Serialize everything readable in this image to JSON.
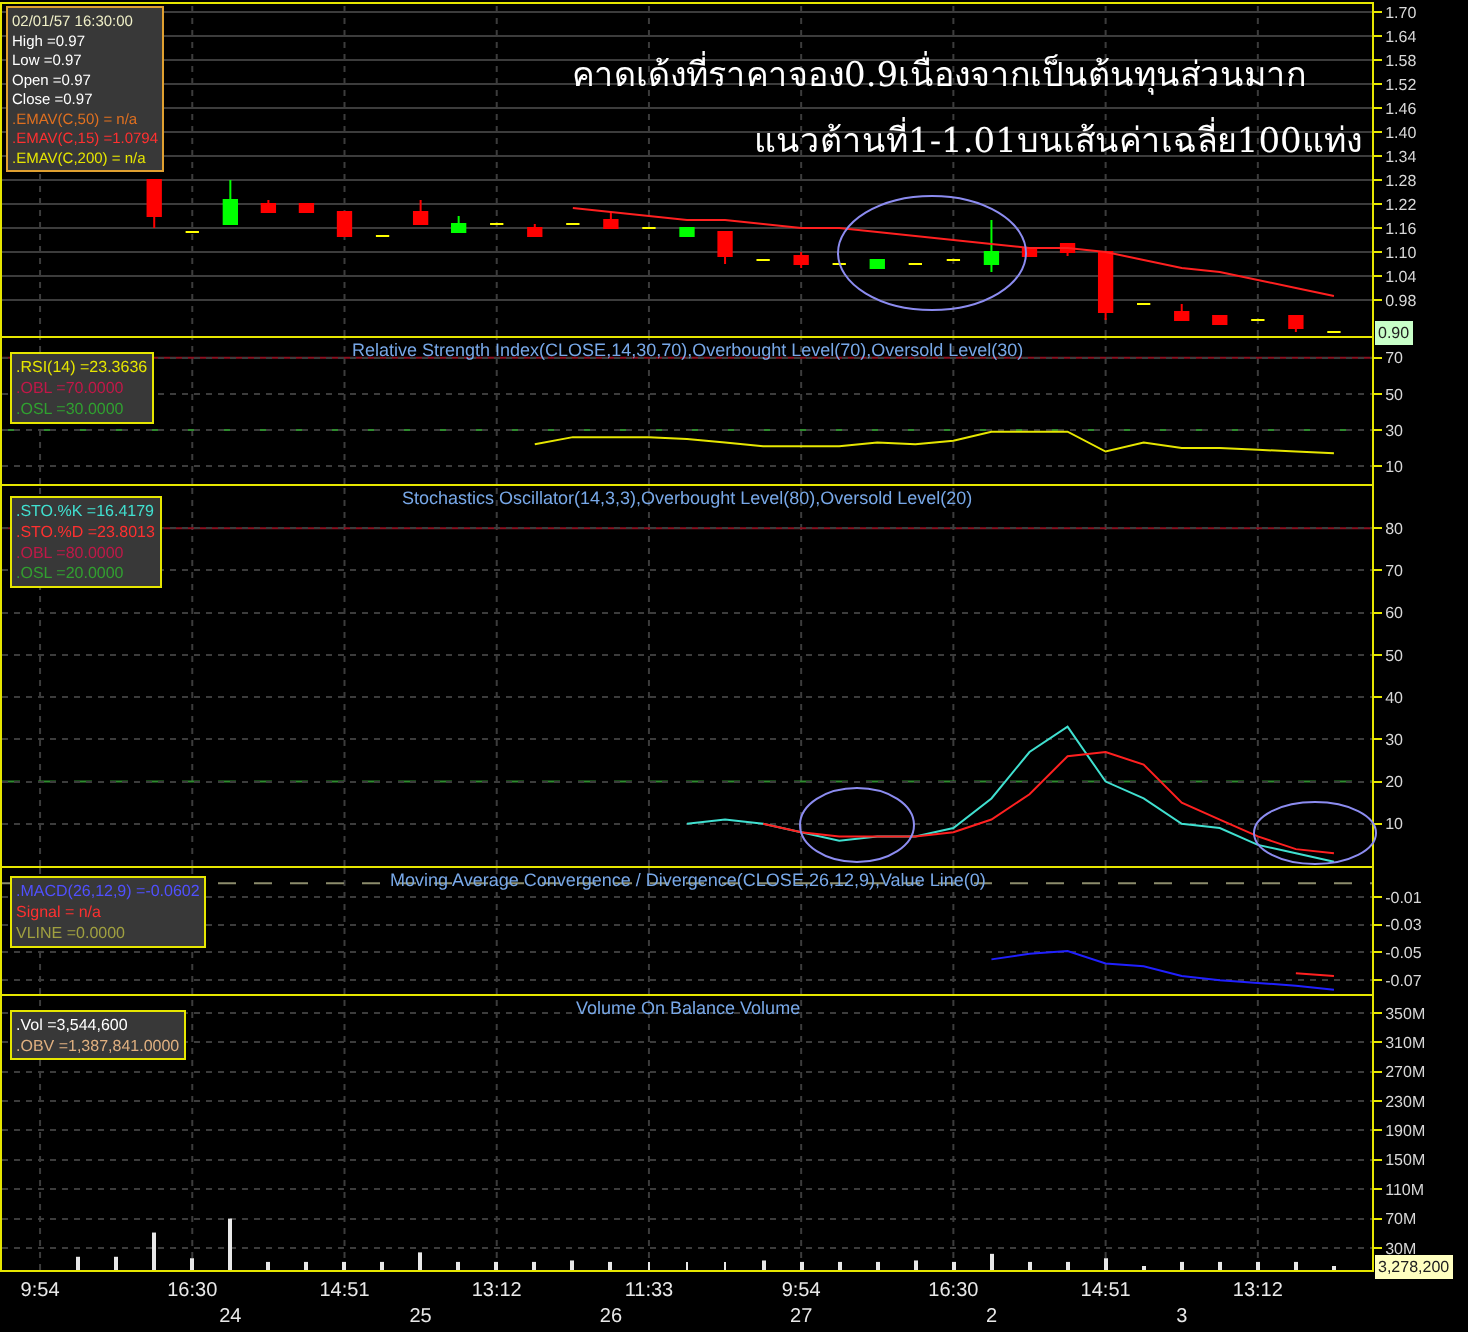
{
  "chart_data": [
    {
      "type": "candlestick",
      "title": "คาดเด้งที่ราคาจอง0.9เนื่องจากเป็นต้นทุนส่วนมาก",
      "subtitle": "แนวต้านที่1-1.01บนเส้นค่าเฉลี่ย100แท่ง",
      "categories": [
        null,
        null,
        null,
        null,
        null,
        null,
        null,
        null,
        null,
        null,
        null,
        null,
        null,
        null,
        null,
        null,
        null,
        null,
        null,
        null,
        null,
        null,
        null,
        null,
        null,
        null,
        null,
        null,
        null,
        null,
        null,
        null,
        null,
        null,
        null
      ],
      "ohlc": [
        null,
        null,
        null,
        [
          1.28,
          1.28,
          1.16,
          1.19
        ],
        [
          1.15,
          1.15,
          1.15,
          1.15
        ],
        [
          1.17,
          1.28,
          1.17,
          1.23
        ],
        [
          1.22,
          1.23,
          1.2,
          1.2
        ],
        [
          1.22,
          1.22,
          1.2,
          1.2
        ],
        [
          1.2,
          1.2,
          1.14,
          1.14
        ],
        [
          1.14,
          1.14,
          1.14,
          1.14
        ],
        [
          1.2,
          1.23,
          1.17,
          1.17
        ],
        [
          1.15,
          1.19,
          1.15,
          1.17
        ],
        [
          1.17,
          1.17,
          1.17,
          1.17
        ],
        [
          1.16,
          1.17,
          1.14,
          1.14
        ],
        [
          1.17,
          1.17,
          1.17,
          1.17
        ],
        [
          1.18,
          1.2,
          1.16,
          1.16
        ],
        [
          1.16,
          1.16,
          1.16,
          1.16
        ],
        [
          1.14,
          1.16,
          1.14,
          1.16
        ],
        [
          1.15,
          1.15,
          1.07,
          1.09
        ],
        [
          1.08,
          1.08,
          1.08,
          1.08
        ],
        [
          1.09,
          1.1,
          1.06,
          1.07
        ],
        [
          1.07,
          1.07,
          1.07,
          1.07
        ],
        [
          1.06,
          1.08,
          1.06,
          1.08
        ],
        [
          1.07,
          1.07,
          1.07,
          1.07
        ],
        [
          1.08,
          1.08,
          1.08,
          1.08
        ],
        [
          1.07,
          1.18,
          1.05,
          1.1
        ],
        [
          1.11,
          1.11,
          1.09,
          1.09
        ],
        [
          1.12,
          1.12,
          1.09,
          1.1
        ],
        [
          1.1,
          1.1,
          0.93,
          0.95
        ],
        [
          0.97,
          0.97,
          0.97,
          0.97
        ],
        [
          0.95,
          0.97,
          0.93,
          0.93
        ],
        [
          0.94,
          0.94,
          0.92,
          0.92
        ],
        [
          0.93,
          0.93,
          0.93,
          0.93
        ],
        [
          0.94,
          0.94,
          0.9,
          0.91
        ],
        [
          0.9,
          0.9,
          0.9,
          0.9
        ]
      ],
      "colors": [
        null,
        null,
        null,
        "#ff0000",
        "#ffff00",
        "#00ff00",
        "#ff0000",
        "#ff0000",
        "#ff0000",
        "#ffff00",
        "#ff0000",
        "#00ff00",
        "#ffff00",
        "#ff0000",
        "#ffff00",
        "#ff0000",
        "#ffff00",
        "#00ff00",
        "#ff0000",
        "#ffff00",
        "#ff0000",
        "#ffff00",
        "#00ff00",
        "#ffff00",
        "#ffff00",
        "#00ff00",
        "#ff0000",
        "#ff0000",
        "#ff0000",
        "#ffff00",
        "#ff0000",
        "#ff0000",
        "#ffff00",
        "#ff0000",
        "#ffff00"
      ],
      "series": [
        {
          "type": "line",
          "color": "#ff2020",
          "values": [
            null,
            null,
            null,
            null,
            null,
            null,
            null,
            null,
            null,
            null,
            null,
            null,
            null,
            null,
            1.21,
            1.2,
            1.19,
            1.18,
            1.18,
            1.17,
            1.16,
            1.16,
            1.15,
            1.14,
            1.13,
            1.12,
            1.11,
            1.11,
            1.1,
            1.08,
            1.06,
            1.05,
            1.03,
            1.01,
            0.99
          ]
        }
      ],
      "ylim": [
        0.89,
        1.72
      ],
      "yticks": [
        0.98,
        1.04,
        {
          "value": 1.1,
          "label": "1.10"
        },
        1.16,
        1.22,
        1.28,
        1.34,
        {
          "value": 1.4,
          "label": "1.40"
        },
        1.46,
        1.52,
        1.58,
        1.64,
        {
          "value": 1.7,
          "label": "1.70"
        }
      ],
      "grid": true,
      "tick_labels": "y",
      "annotations": [
        "02/01/57 16:30:00",
        "High =0.97",
        "Low =0.97",
        "Open =0.97",
        "Close =0.97",
        ".EMAV(C,50) = n/a",
        ".EMAV(C,15) =1.0794",
        ".EMAV(C,200) = n/a",
        {
          "text": "0.90",
          "y": 0.9
        }
      ]
    },
    {
      "type": "line",
      "title": "Relative Strength Index(CLOSE,14,30,70),Overbought Level(70),Oversold Level(30)",
      "categories": [
        null,
        null,
        null,
        null,
        null,
        null,
        null,
        null,
        null,
        null,
        null,
        null,
        null,
        null,
        null,
        null,
        null,
        null,
        null,
        null,
        null,
        null,
        null,
        null,
        null,
        null,
        null,
        null,
        null,
        null,
        null,
        null,
        null,
        null,
        null
      ],
      "series": [
        {
          "color": "#e6e600",
          "values": [
            null,
            null,
            null,
            null,
            null,
            null,
            null,
            null,
            null,
            null,
            null,
            null,
            null,
            22,
            26,
            26,
            26,
            25,
            23,
            21,
            21,
            21,
            23,
            22,
            24,
            29,
            29,
            29,
            18,
            23,
            20,
            20,
            19,
            18,
            17
          ]
        }
      ],
      "ylim": [
        0,
        81
      ],
      "yticks": [
        70,
        50,
        30,
        10
      ],
      "ref_lines": [
        {
          "axis": "y",
          "value": 70,
          "color": "#8b1020",
          "line_style": "solid"
        },
        {
          "axis": "y",
          "value": 30,
          "color": "#2e8b2e",
          "line_style": "dashed"
        }
      ],
      "grid": true,
      "tick_labels": "y",
      "annotations": [
        ".RSI(14) =23.3636",
        ".OBL =70.0000",
        ".OSL =30.0000"
      ]
    },
    {
      "type": "line",
      "title": "Stochastics Oscillator(14,3,3),Overbought Level(80),Oversold Level(20)",
      "categories": [
        null,
        null,
        null,
        null,
        null,
        null,
        null,
        null,
        null,
        null,
        null,
        null,
        null,
        null,
        null,
        null,
        null,
        null,
        null,
        null,
        null,
        null,
        null,
        null,
        null,
        null,
        null,
        null,
        null,
        null,
        null,
        null,
        null,
        null,
        null
      ],
      "series": [
        {
          "color": "#40e0d0",
          "values": [
            null,
            null,
            null,
            null,
            null,
            null,
            null,
            null,
            null,
            null,
            null,
            null,
            null,
            null,
            null,
            null,
            null,
            10,
            11,
            10,
            8,
            6,
            7,
            7,
            9,
            16,
            27,
            33,
            20,
            16,
            10,
            9,
            5,
            3,
            1
          ]
        },
        {
          "color": "#ff2020",
          "values": [
            null,
            null,
            null,
            null,
            null,
            null,
            null,
            null,
            null,
            null,
            null,
            null,
            null,
            null,
            null,
            null,
            null,
            null,
            null,
            10,
            8,
            7,
            7,
            7,
            8,
            11,
            17,
            26,
            27,
            24,
            15,
            11,
            7,
            4,
            3
          ]
        }
      ],
      "ylim": [
        0,
        90
      ],
      "yticks": [
        80,
        70,
        60,
        50,
        40,
        30,
        20,
        10
      ],
      "ref_lines": [
        {
          "axis": "y",
          "value": 80,
          "color": "#8b1020",
          "line_style": "solid"
        },
        {
          "axis": "y",
          "value": 20,
          "color": "#2e8b2e",
          "line_style": "dashed"
        }
      ],
      "grid": true,
      "tick_labels": "y",
      "annotations": [
        ".STO.%K =16.4179",
        ".STO.%D =23.8013",
        ".OBL =80.0000",
        ".OSL =20.0000"
      ]
    },
    {
      "type": "line",
      "title": "Moving Average Convergence / Divergence(CLOSE,26,12,9),Value Line(0)",
      "categories": [
        null,
        null,
        null,
        null,
        null,
        null,
        null,
        null,
        null,
        null,
        null,
        null,
        null,
        null,
        null,
        null,
        null,
        null,
        null,
        null,
        null,
        null,
        null,
        null,
        null,
        null,
        null,
        null,
        null,
        null,
        null,
        null,
        null,
        null,
        null
      ],
      "series": [
        {
          "color": "#2020ff",
          "values": [
            null,
            null,
            null,
            null,
            null,
            null,
            null,
            null,
            null,
            null,
            null,
            null,
            null,
            null,
            null,
            null,
            null,
            null,
            null,
            null,
            null,
            null,
            null,
            null,
            null,
            -0.055,
            -0.051,
            -0.049,
            -0.058,
            -0.06,
            -0.067,
            -0.07,
            -0.072,
            -0.074,
            -0.077
          ]
        },
        {
          "color": "#ff2020",
          "values": [
            null,
            null,
            null,
            null,
            null,
            null,
            null,
            null,
            null,
            null,
            null,
            null,
            null,
            null,
            null,
            null,
            null,
            null,
            null,
            null,
            null,
            null,
            null,
            null,
            null,
            null,
            null,
            null,
            null,
            null,
            null,
            null,
            null,
            -0.065,
            -0.067
          ]
        }
      ],
      "ylim": [
        -0.08,
        0.011
      ],
      "yticks": [
        -0.01,
        -0.03,
        -0.05,
        -0.07
      ],
      "ref_lines": [
        {
          "axis": "y",
          "value": 0,
          "color": "#8c8c6c",
          "line_style": "dashed"
        }
      ],
      "grid": true,
      "tick_labels": "y",
      "annotations": [
        ".MACD(26,12,9) =-0.0602",
        "Signal = n/a",
        "VLINE =0.0000"
      ]
    },
    {
      "type": "bar",
      "title": "Volume On Balance Volume",
      "categories": [
        "9:54",
        null,
        null,
        null,
        "16:30",
        "\n24",
        null,
        null,
        "14:51",
        null,
        "\n25",
        null,
        "13:12",
        null,
        null,
        "\n26",
        "11:33",
        null,
        null,
        null,
        "9:54\n27",
        null,
        null,
        null,
        "16:30",
        "\n2",
        null,
        null,
        "14:51",
        null,
        "\n3",
        null,
        "13:12",
        null,
        null
      ],
      "values": [
        null,
        18000000,
        18000000,
        51000000,
        16000000,
        70000000,
        11000000,
        11000000,
        11000000,
        11000000,
        24000000,
        11000000,
        11000000,
        11000000,
        13000000,
        11000000,
        11000000,
        11000000,
        11000000,
        13000000,
        11000000,
        11000000,
        11000000,
        13000000,
        11000000,
        22000000,
        11000000,
        11000000,
        16000000,
        3544600,
        11000000,
        11000000,
        11000000,
        11000000,
        3278200
      ],
      "color": "#e8e8e8",
      "ylim": [
        0,
        373000000
      ],
      "yticks": [
        {
          "value": 350000000,
          "label": "350M"
        },
        {
          "value": 310000000,
          "label": "310M"
        },
        {
          "value": 270000000,
          "label": "270M"
        },
        {
          "value": 230000000,
          "label": "230M"
        },
        {
          "value": 190000000,
          "label": "190M"
        },
        {
          "value": 150000000,
          "label": "150M"
        },
        {
          "value": 110000000,
          "label": "110M"
        },
        {
          "value": 70000000,
          "label": "70M"
        },
        {
          "value": 30000000,
          "label": "30M"
        }
      ],
      "grid": true,
      "annotations": [
        ".Vol =3,544,600",
        ".OBV =1,387,841.0000",
        {
          "text": "3,278,200",
          "y": 3278200
        }
      ]
    }
  ]
}
